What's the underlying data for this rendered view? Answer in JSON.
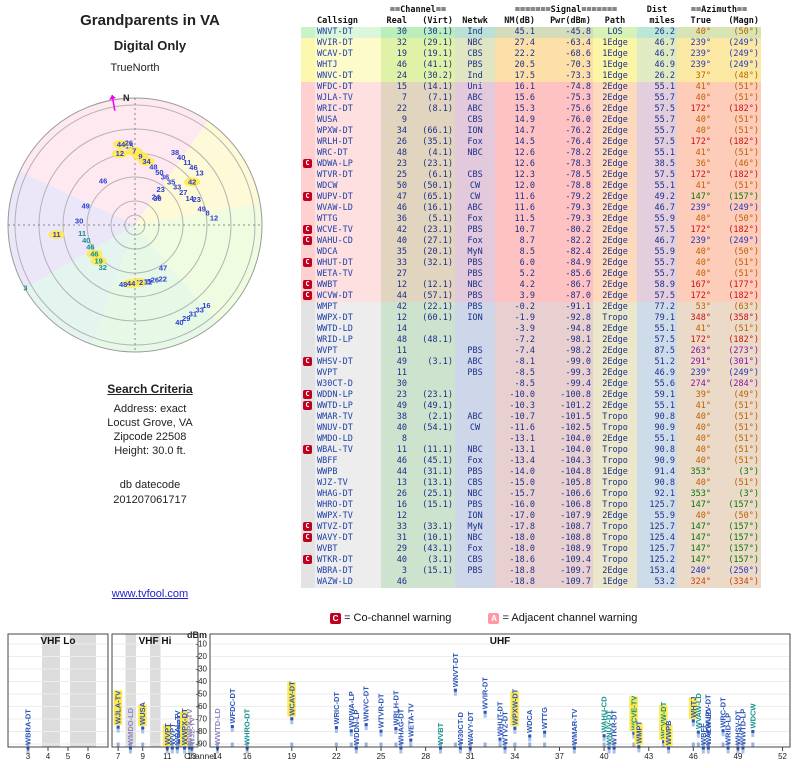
{
  "header": {
    "title": "Grandparents in VA",
    "subtitle": "Digital Only",
    "true_north": "TrueNorth",
    "north_label": "N"
  },
  "search": {
    "heading": "Search Criteria",
    "lines": [
      "Address: exact",
      "Locust Grove, VA",
      "Zipcode 22508",
      "Height: 30.0 ft."
    ],
    "db_label": "db datecode",
    "db_value": "201207061717"
  },
  "link": "www.tvfool.com",
  "legend": {
    "co": {
      "badge": "C",
      "text": "= Co-channel warning"
    },
    "adj": {
      "badge": "A",
      "text": "= Adjacent channel warning"
    }
  },
  "table": {
    "groups": {
      "channel": "==Channel==",
      "signal": "=======Signal=======",
      "dist": "Dist",
      "azimuth": "==Azimuth=="
    },
    "columns": {
      "callsign": "Callsign",
      "real": "Real",
      "virt": "(Virt)",
      "netwk": "Netwk",
      "nm": "NM(dB)",
      "pwr": "Pwr(dBm)",
      "path": "Path",
      "miles": "miles",
      "az_true": "True",
      "az_magn": "(Magn)"
    }
  },
  "radar": {
    "wedges": [
      {
        "from": 295,
        "to": 35,
        "color": "#ffdfe9"
      },
      {
        "from": 35,
        "to": 80,
        "color": "#fdf6c5"
      },
      {
        "from": 80,
        "to": 140,
        "color": "#e9fbd2"
      },
      {
        "from": 140,
        "to": 200,
        "color": "#dcf7dc"
      },
      {
        "from": 200,
        "to": 240,
        "color": "#d8f0e8"
      },
      {
        "from": 240,
        "to": 295,
        "color": "#e4dcf7"
      }
    ]
  },
  "chart_colors": {
    "b": "#2c55b8",
    "t": "#12918a",
    "v": "#8f86c0"
  },
  "charts": {
    "dbm_label": "dBm",
    "channel_label": "Channel",
    "panels": [
      {
        "title": "VHF Lo",
        "range": [
          2,
          7
        ],
        "ticks": [
          3,
          4,
          5,
          6
        ]
      },
      {
        "title": "VHF Hi",
        "range": [
          6.5,
          13.5
        ],
        "ticks": [
          7,
          9,
          11,
          13
        ]
      },
      {
        "title": "UHF",
        "range": [
          13.5,
          52.5
        ],
        "ticks": [
          14,
          16,
          19,
          22,
          25,
          28,
          31,
          34,
          37,
          40,
          43,
          46,
          49,
          52
        ]
      }
    ]
  },
  "chart_data": {
    "type": "scatter",
    "title": "TV station signal strength by RF channel (dBm), with radar plot of stations by azimuth and distance",
    "x_label": "Channel",
    "y_label": "dBm",
    "y_ticks": [
      -10,
      -20,
      -30,
      -40,
      -50,
      -60,
      -70,
      -80,
      -90
    ],
    "stations": [
      {
        "w": "",
        "cs": "WNVT-DT",
        "re": 30,
        "vi": "30.1",
        "nw": "Ind",
        "nm": "45.1",
        "pw": "-45.8",
        "pa": "LOS",
        "di": 26.2,
        "tr": 40,
        "mg": 50,
        "ac": "#c06000",
        "z": "g",
        "cc": "b",
        "hl": false
      },
      {
        "w": "",
        "cs": "WVIR-DT",
        "re": 32,
        "vi": "29.1",
        "nw": "NBC",
        "nm": "27.4",
        "pw": "-63.4",
        "pa": "1Edge",
        "di": 46.7,
        "tr": 239,
        "mg": 249,
        "ac": "#2a35c0",
        "z": "y",
        "cc": "b",
        "hl": false
      },
      {
        "w": "",
        "cs": "WCAV-DT",
        "re": 19,
        "vi": "19.1",
        "nw": "CBS",
        "nm": "22.2",
        "pw": "-68.6",
        "pa": "1Edge",
        "di": 46.7,
        "tr": 239,
        "mg": 249,
        "ac": "#2a35c0",
        "z": "y",
        "cc": "b",
        "hl": true
      },
      {
        "w": "",
        "cs": "WHTJ",
        "re": 46,
        "vi": "41.1",
        "nw": "PBS",
        "nm": "20.5",
        "pw": "-70.3",
        "pa": "1Edge",
        "di": 46.9,
        "tr": 239,
        "mg": 249,
        "ac": "#2a35c0",
        "z": "y",
        "cc": "b",
        "hl": true
      },
      {
        "w": "",
        "cs": "WNVC-DT",
        "re": 24,
        "vi": "30.2",
        "nw": "Ind",
        "nm": "17.5",
        "pw": "-73.3",
        "pa": "1Edge",
        "di": 26.2,
        "tr": 37,
        "mg": 48,
        "ac": "#c06000",
        "z": "y",
        "cc": "b",
        "hl": false
      },
      {
        "w": "",
        "cs": "WFDC-DT",
        "re": 15,
        "vi": "14.1",
        "nw": "Uni",
        "nm": "16.1",
        "pw": "-74.8",
        "pa": "2Edge",
        "di": 55.1,
        "tr": 41,
        "mg": 51,
        "ac": "#c06000",
        "z": "p",
        "cc": "b",
        "hl": false
      },
      {
        "w": "",
        "cs": "WJLA-TV",
        "re": 7,
        "vi": "7.1",
        "nw": "ABC",
        "nm": "15.6",
        "pw": "-75.3",
        "pa": "2Edge",
        "di": 55.7,
        "tr": 40,
        "mg": 51,
        "ac": "#c06000",
        "z": "p",
        "cc": "b",
        "hl": true
      },
      {
        "w": "",
        "cs": "WRIC-DT",
        "re": 22,
        "vi": "8.1",
        "nw": "ABC",
        "nm": "15.3",
        "pw": "-75.6",
        "pa": "2Edge",
        "di": 57.5,
        "tr": 172,
        "mg": 182,
        "ac": "#cc1111",
        "z": "p",
        "cc": "b",
        "hl": false
      },
      {
        "w": "",
        "cs": "WUSA",
        "re": 9,
        "vi": "",
        "nw": "CBS",
        "nm": "14.9",
        "pw": "-76.0",
        "pa": "2Edge",
        "di": 55.7,
        "tr": 40,
        "mg": 51,
        "ac": "#c06000",
        "z": "p",
        "cc": "b",
        "hl": true
      },
      {
        "w": "",
        "cs": "WPXW-DT",
        "re": 34,
        "vi": "66.1",
        "nw": "ION",
        "nm": "14.7",
        "pw": "-76.2",
        "pa": "2Edge",
        "di": 55.7,
        "tr": 40,
        "mg": 51,
        "ac": "#c06000",
        "z": "p",
        "cc": "b",
        "hl": true
      },
      {
        "w": "",
        "cs": "WRLH-DT",
        "re": 26,
        "vi": "35.1",
        "nw": "Fox",
        "nm": "14.5",
        "pw": "-76.4",
        "pa": "2Edge",
        "di": 57.5,
        "tr": 172,
        "mg": 182,
        "ac": "#cc1111",
        "z": "p",
        "cc": "b",
        "hl": false
      },
      {
        "w": "",
        "cs": "WRC-DT",
        "re": 48,
        "vi": "4.1",
        "nw": "NBC",
        "nm": "12.6",
        "pw": "-78.2",
        "pa": "2Edge",
        "di": 55.1,
        "tr": 41,
        "mg": 51,
        "ac": "#c06000",
        "z": "p",
        "cc": "b",
        "hl": false
      },
      {
        "w": "C",
        "cs": "WDWA-LP",
        "re": 23,
        "vi": "23.1",
        "nw": "",
        "nm": "12.6",
        "pw": "-78.3",
        "pa": "2Edge",
        "di": 38.5,
        "tr": 36,
        "mg": 46,
        "ac": "#c06000",
        "z": "p",
        "cc": "b",
        "hl": false
      },
      {
        "w": "",
        "cs": "WTVR-DT",
        "re": 25,
        "vi": "6.1",
        "nw": "CBS",
        "nm": "12.3",
        "pw": "-78.5",
        "pa": "2Edge",
        "di": 57.5,
        "tr": 172,
        "mg": 182,
        "ac": "#cc1111",
        "z": "p",
        "cc": "b",
        "hl": false
      },
      {
        "w": "",
        "cs": "WDCW",
        "re": 50,
        "vi": "50.1",
        "nw": "CW",
        "nm": "12.0",
        "pw": "-78.8",
        "pa": "2Edge",
        "di": 55.1,
        "tr": 41,
        "mg": 51,
        "ac": "#c06000",
        "z": "p",
        "cc": "t",
        "hl": false
      },
      {
        "w": "C",
        "cs": "WUPV-DT",
        "re": 47,
        "vi": "65.1",
        "nw": "CW",
        "nm": "11.6",
        "pw": "-79.2",
        "pa": "2Edge",
        "di": 49.2,
        "tr": 147,
        "mg": 157,
        "ac": "#067806",
        "z": "p",
        "cc": "b",
        "hl": false
      },
      {
        "w": "",
        "cs": "WVAW-LD",
        "re": 46,
        "vi": "16.1",
        "nw": "ABC",
        "nm": "11.6",
        "pw": "-79.3",
        "pa": "2Edge",
        "di": 46.7,
        "tr": 239,
        "mg": 249,
        "ac": "#2a35c0",
        "z": "p",
        "cc": "t",
        "hl": false
      },
      {
        "w": "",
        "cs": "WTTG",
        "re": 36,
        "vi": "5.1",
        "nw": "Fox",
        "nm": "11.5",
        "pw": "-79.3",
        "pa": "2Edge",
        "di": 55.9,
        "tr": 40,
        "mg": 50,
        "ac": "#c06000",
        "z": "p",
        "cc": "b",
        "hl": false
      },
      {
        "w": "C",
        "cs": "WCVE-TV",
        "re": 42,
        "vi": "23.1",
        "nw": "PBS",
        "nm": "10.7",
        "pw": "-80.2",
        "pa": "2Edge",
        "di": 57.5,
        "tr": 172,
        "mg": 182,
        "ac": "#cc1111",
        "z": "p",
        "cc": "t",
        "hl": true
      },
      {
        "w": "C",
        "cs": "WAHU-CD",
        "re": 40,
        "vi": "27.1",
        "nw": "Fox",
        "nm": "8.7",
        "pw": "-82.2",
        "pa": "2Edge",
        "di": 46.7,
        "tr": 239,
        "mg": 249,
        "ac": "#2a35c0",
        "z": "p",
        "cc": "t",
        "hl": false
      },
      {
        "w": "",
        "cs": "WDCA",
        "re": 35,
        "vi": "20.1",
        "nw": "MyN",
        "nm": "8.5",
        "pw": "-82.4",
        "pa": "2Edge",
        "di": 55.9,
        "tr": 40,
        "mg": 50,
        "ac": "#c06000",
        "z": "p",
        "cc": "b",
        "hl": false
      },
      {
        "w": "C",
        "cs": "WHUT-DT",
        "re": 33,
        "vi": "32.1",
        "nw": "PBS",
        "nm": "6.0",
        "pw": "-84.9",
        "pa": "2Edge",
        "di": 55.7,
        "tr": 40,
        "mg": 51,
        "ac": "#c06000",
        "z": "p",
        "cc": "b",
        "hl": false
      },
      {
        "w": "",
        "cs": "WETA-TV",
        "re": 27,
        "vi": "",
        "nw": "PBS",
        "nm": "5.2",
        "pw": "-85.6",
        "pa": "2Edge",
        "di": 55.7,
        "tr": 40,
        "mg": 51,
        "ac": "#c06000",
        "z": "p",
        "cc": "b",
        "hl": false
      },
      {
        "w": "C",
        "cs": "WWBT",
        "re": 12,
        "vi": "12.1",
        "nw": "NBC",
        "nm": "4.2",
        "pw": "-86.7",
        "pa": "2Edge",
        "di": 58.9,
        "tr": 167,
        "mg": 177,
        "ac": "#cc1111",
        "z": "p",
        "cc": "b",
        "hl": false
      },
      {
        "w": "C",
        "cs": "WCVW-DT",
        "re": 44,
        "vi": "57.1",
        "nw": "PBS",
        "nm": "3.9",
        "pw": "-87.0",
        "pa": "2Edge",
        "di": 57.5,
        "tr": 172,
        "mg": 182,
        "ac": "#cc1111",
        "z": "p",
        "cc": "t",
        "hl": true
      },
      {
        "w": "",
        "cs": "WMPT",
        "re": 42,
        "vi": "22.1",
        "nw": "PBS",
        "nm": "-0.2",
        "pw": "-91.1",
        "pa": "2Edge",
        "di": 77.2,
        "tr": 53,
        "mg": 63,
        "ac": "#c06000",
        "z": "x",
        "cc": "b",
        "hl": true
      },
      {
        "w": "",
        "cs": "WWPX-DT",
        "re": 12,
        "vi": "60.1",
        "nw": "ION",
        "nm": "-1.9",
        "pw": "-92.8",
        "pa": "Tropo",
        "di": 79.1,
        "tr": 348,
        "mg": 358,
        "ac": "#cc1111",
        "z": "x",
        "cc": "b",
        "hl": true
      },
      {
        "w": "",
        "cs": "WWTD-LD",
        "re": 14,
        "vi": "",
        "nw": "",
        "nm": "-3.9",
        "pw": "-94.8",
        "pa": "2Edge",
        "di": 55.1,
        "tr": 41,
        "mg": 51,
        "ac": "#c06000",
        "z": "x",
        "cc": "v",
        "hl": false
      },
      {
        "w": "",
        "cs": "WRID-LP",
        "re": 48,
        "vi": "48.1",
        "nw": "",
        "nm": "-7.2",
        "pw": "-98.1",
        "pa": "2Edge",
        "di": 57.5,
        "tr": 172,
        "mg": 182,
        "ac": "#cc1111",
        "z": "x",
        "cc": "b",
        "hl": false
      },
      {
        "w": "",
        "cs": "WVPT",
        "re": 11,
        "vi": "",
        "nw": "PBS",
        "nm": "-7.4",
        "pw": "-98.2",
        "pa": "2Edge",
        "di": 87.5,
        "tr": 263,
        "mg": 273,
        "ac": "#8812a8",
        "z": "x",
        "cc": "b",
        "hl": true
      },
      {
        "w": "C",
        "cs": "WHSV-DT",
        "re": 49,
        "vi": "3.1",
        "nw": "ABC",
        "nm": "-8.1",
        "pw": "-99.0",
        "pa": "2Edge",
        "di": 51.2,
        "tr": 291,
        "mg": 301,
        "ac": "#8812a8",
        "z": "x",
        "cc": "b",
        "hl": false
      },
      {
        "w": "",
        "cs": "WVPT",
        "re": 11,
        "vi": "",
        "nw": "PBS",
        "nm": "-8.5",
        "pw": "-99.3",
        "pa": "2Edge",
        "di": 46.9,
        "tr": 239,
        "mg": 249,
        "ac": "#2a35c0",
        "z": "x",
        "cc": "b",
        "hl": false
      },
      {
        "w": "",
        "cs": "W30CT-D",
        "re": 30,
        "vi": "",
        "nw": "",
        "nm": "-8.5",
        "pw": "-99.4",
        "pa": "2Edge",
        "di": 55.6,
        "tr": 274,
        "mg": 284,
        "ac": "#8812a8",
        "z": "x",
        "cc": "b",
        "hl": false
      },
      {
        "w": "C",
        "cs": "WDDN-LP",
        "re": 23,
        "vi": "23.1",
        "nw": "",
        "nm": "-10.0",
        "pw": "-100.8",
        "pa": "2Edge",
        "di": 59.1,
        "tr": 39,
        "mg": 49,
        "ac": "#c06000",
        "z": "x",
        "cc": "b",
        "hl": false
      },
      {
        "w": "C",
        "cs": "WWTD-LP",
        "re": 49,
        "vi": "49.1",
        "nw": "",
        "nm": "-10.3",
        "pw": "-101.2",
        "pa": "2Edge",
        "di": 55.1,
        "tr": 41,
        "mg": 51,
        "ac": "#c06000",
        "z": "x",
        "cc": "b",
        "hl": false
      },
      {
        "w": "",
        "cs": "WMAR-TV",
        "re": 38,
        "vi": "2.1",
        "nw": "ABC",
        "nm": "-10.7",
        "pw": "-101.5",
        "pa": "Tropo",
        "di": 90.8,
        "tr": 40,
        "mg": 51,
        "ac": "#c06000",
        "z": "x",
        "cc": "b",
        "hl": false
      },
      {
        "w": "",
        "cs": "WNUV-DT",
        "re": 40,
        "vi": "54.1",
        "nw": "CW",
        "nm": "-11.6",
        "pw": "-102.5",
        "pa": "Tropo",
        "di": 90.9,
        "tr": 40,
        "mg": 51,
        "ac": "#c06000",
        "z": "x",
        "cc": "t",
        "hl": false
      },
      {
        "w": "",
        "cs": "WMDO-LD",
        "re": 8,
        "vi": "",
        "nw": "",
        "nm": "-13.1",
        "pw": "-104.0",
        "pa": "2Edge",
        "di": 55.1,
        "tr": 40,
        "mg": 51,
        "ac": "#c06000",
        "z": "x",
        "cc": "v",
        "hl": false
      },
      {
        "w": "C",
        "cs": "WBAL-TV",
        "re": 11,
        "vi": "11.1",
        "nw": "NBC",
        "nm": "-13.1",
        "pw": "-104.0",
        "pa": "Tropo",
        "di": 90.8,
        "tr": 40,
        "mg": 51,
        "ac": "#c06000",
        "z": "x",
        "cc": "b",
        "hl": false
      },
      {
        "w": "",
        "cs": "WBFF",
        "re": 46,
        "vi": "45.1",
        "nw": "Fox",
        "nm": "-13.4",
        "pw": "-104.3",
        "pa": "Tropo",
        "di": 90.9,
        "tr": 40,
        "mg": 51,
        "ac": "#c06000",
        "z": "x",
        "cc": "b",
        "hl": false
      },
      {
        "w": "",
        "cs": "WWPB",
        "re": 44,
        "vi": "31.1",
        "nw": "PBS",
        "nm": "-14.0",
        "pw": "-104.8",
        "pa": "1Edge",
        "di": 91.4,
        "tr": 353,
        "mg": 3,
        "ac": "#067806",
        "z": "x",
        "cc": "b",
        "hl": true
      },
      {
        "w": "",
        "cs": "WJZ-TV",
        "re": 13,
        "vi": "13.1",
        "nw": "CBS",
        "nm": "-15.0",
        "pw": "-105.8",
        "pa": "Tropo",
        "di": 90.8,
        "tr": 40,
        "mg": 51,
        "ac": "#c06000",
        "z": "x",
        "cc": "v",
        "hl": false
      },
      {
        "w": "",
        "cs": "WHAG-DT",
        "re": 26,
        "vi": "25.1",
        "nw": "NBC",
        "nm": "-15.7",
        "pw": "-106.6",
        "pa": "Tropo",
        "di": 92.1,
        "tr": 353,
        "mg": 3,
        "ac": "#067806",
        "z": "x",
        "cc": "b",
        "hl": false
      },
      {
        "w": "",
        "cs": "WHRO-DT",
        "re": 16,
        "vi": "15.1",
        "nw": "PBS",
        "nm": "-16.0",
        "pw": "-106.8",
        "pa": "Tropo",
        "di": 125.7,
        "tr": 147,
        "mg": 157,
        "ac": "#067806",
        "z": "x",
        "cc": "t",
        "hl": false
      },
      {
        "w": "",
        "cs": "WWPX-TV",
        "re": 12,
        "vi": "",
        "nw": "ION",
        "nm": "-17.0",
        "pw": "-107.9",
        "pa": "2Edge",
        "di": 55.9,
        "tr": 40,
        "mg": 50,
        "ac": "#c06000",
        "z": "x",
        "cc": "v",
        "hl": false
      },
      {
        "w": "C",
        "cs": "WTVZ-DT",
        "re": 33,
        "vi": "33.1",
        "nw": "MyN",
        "nm": "-17.8",
        "pw": "-108.7",
        "pa": "Tropo",
        "di": 125.7,
        "tr": 147,
        "mg": 157,
        "ac": "#067806",
        "z": "x",
        "cc": "b",
        "hl": false
      },
      {
        "w": "C",
        "cs": "WAVY-DT",
        "re": 31,
        "vi": "10.1",
        "nw": "NBC",
        "nm": "-18.0",
        "pw": "-108.8",
        "pa": "Tropo",
        "di": 125.4,
        "tr": 147,
        "mg": 157,
        "ac": "#067806",
        "z": "x",
        "cc": "b",
        "hl": false
      },
      {
        "w": "",
        "cs": "WVBT",
        "re": 29,
        "vi": "43.1",
        "nw": "Fox",
        "nm": "-18.0",
        "pw": "-108.9",
        "pa": "Tropo",
        "di": 125.7,
        "tr": 147,
        "mg": 157,
        "ac": "#067806",
        "z": "x",
        "cc": "t",
        "hl": false
      },
      {
        "w": "C",
        "cs": "WTKR-DT",
        "re": 40,
        "vi": "3.1",
        "nw": "CBS",
        "nm": "-18.6",
        "pw": "-109.4",
        "pa": "Tropo",
        "di": 125.2,
        "tr": 147,
        "mg": 157,
        "ac": "#067806",
        "z": "x",
        "cc": "b",
        "hl": false
      },
      {
        "w": "",
        "cs": "WBRA-DT",
        "re": 3,
        "vi": "15.1",
        "nw": "PBS",
        "nm": "-18.8",
        "pw": "-109.7",
        "pa": "2Edge",
        "di": 153.4,
        "tr": 240,
        "mg": 250,
        "ac": "#2a35c0",
        "z": "x",
        "cc": "b",
        "hl": false
      },
      {
        "w": "",
        "cs": "WAZW-LD",
        "re": 46,
        "vi": "",
        "nw": "",
        "nm": "-18.8",
        "pw": "-109.7",
        "pa": "1Edge",
        "di": 53.2,
        "tr": 324,
        "mg": 334,
        "ac": "#cc4400",
        "z": "x",
        "cc": "b",
        "hl": false
      }
    ]
  }
}
